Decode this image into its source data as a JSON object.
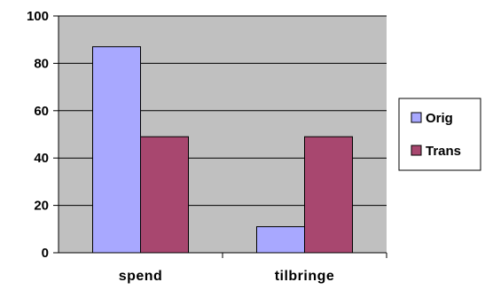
{
  "chart_data": {
    "type": "bar",
    "categories": [
      "spend",
      "tilbringe"
    ],
    "series": [
      {
        "name": "Orig",
        "values": [
          87,
          11
        ],
        "color": "#a8a8ff"
      },
      {
        "name": "Trans",
        "values": [
          49,
          49
        ],
        "color": "#a8476f"
      }
    ],
    "ylim": [
      0,
      100
    ],
    "yticks": [
      0,
      20,
      40,
      60,
      80,
      100
    ],
    "grid": true,
    "plot_background": "#c0c0c0",
    "legend": "right"
  }
}
